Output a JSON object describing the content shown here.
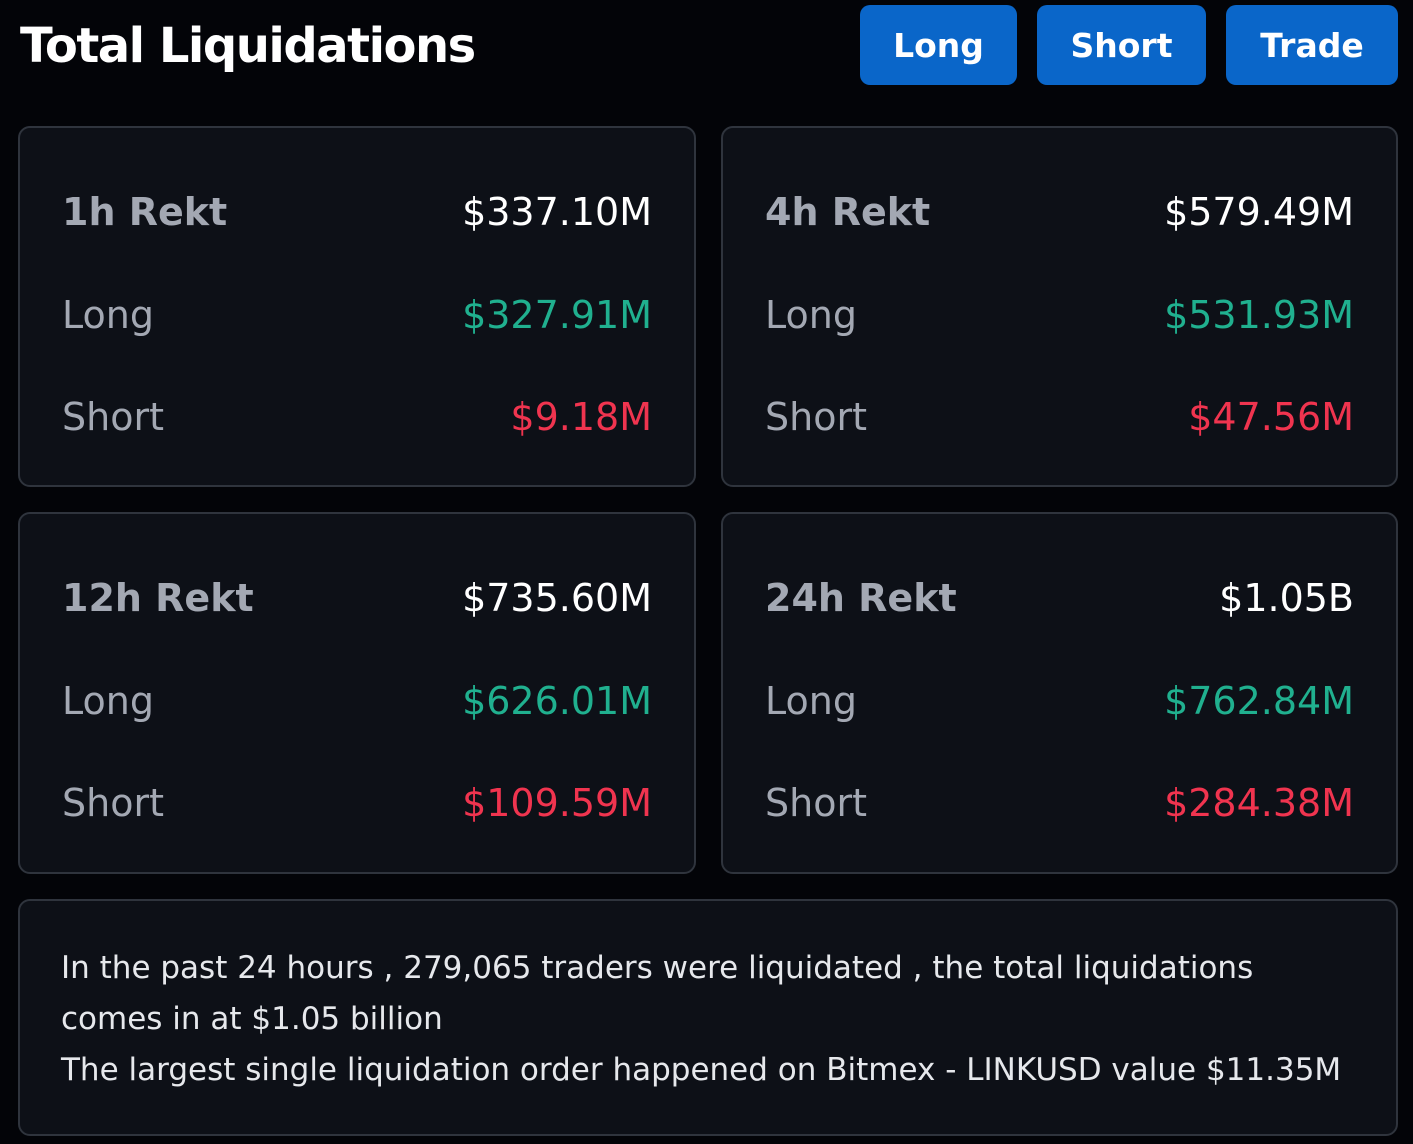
{
  "header": {
    "title": "Total Liquidations",
    "buttons": {
      "long": "Long",
      "short": "Short",
      "trade": "Trade"
    }
  },
  "cards": [
    {
      "period_label": "1h Rekt",
      "total": "$337.10M",
      "long_label": "Long",
      "long_value": "$327.91M",
      "short_label": "Short",
      "short_value": "$9.18M"
    },
    {
      "period_label": "4h Rekt",
      "total": "$579.49M",
      "long_label": "Long",
      "long_value": "$531.93M",
      "short_label": "Short",
      "short_value": "$47.56M"
    },
    {
      "period_label": "12h Rekt",
      "total": "$735.60M",
      "long_label": "Long",
      "long_value": "$626.01M",
      "short_label": "Short",
      "short_value": "$109.59M"
    },
    {
      "period_label": "24h Rekt",
      "total": "$1.05B",
      "long_label": "Long",
      "long_value": "$762.84M",
      "short_label": "Short",
      "short_value": "$284.38M"
    }
  ],
  "summary": {
    "line1": "In the past 24 hours , 279,065 traders were liquidated , the total liquidations comes in at $1.05 billion",
    "line2": "The largest single liquidation order happened on Bitmex - LINKUSD value $11.35M"
  },
  "colors": {
    "background": "#030408",
    "card_background": "#0d1017",
    "card_border": "#2f343d",
    "button_blue": "#0a66c9",
    "long_green": "#20b08f",
    "short_red": "#f0344f",
    "muted_label": "#a3a8b3"
  }
}
